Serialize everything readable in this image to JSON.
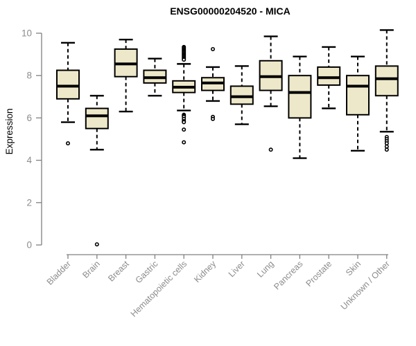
{
  "title": "ENSG00000204520 - MICA",
  "colors": {
    "box_fill": "#EDE8C9",
    "box_stroke": "#000000",
    "median": "#000000",
    "outlier_stroke": "#000000",
    "axis_line": "#808080",
    "axis_text": "#8C8C8C",
    "title_text": "#000000",
    "background": "#FFFFFF"
  },
  "chart_data": {
    "type": "boxplot",
    "title": "ENSG00000204520 - MICA",
    "xlabel": "",
    "ylabel": "Expression",
    "ylim": [
      0,
      10.2
    ],
    "yticks": [
      0,
      2,
      4,
      6,
      8,
      10
    ],
    "grid": false,
    "legend": false,
    "categories": [
      "Bladder",
      "Brain",
      "Breast",
      "Gastric",
      "Hematopoietic cells",
      "Kidney",
      "Liver",
      "Lung",
      "Pancreas",
      "Prostate",
      "Skin",
      "Unknown / Other"
    ],
    "series": [
      {
        "name": "Bladder",
        "low": 5.8,
        "q1": 6.9,
        "median": 7.5,
        "q3": 8.25,
        "high": 9.55,
        "outliers": [
          4.8
        ]
      },
      {
        "name": "Brain",
        "low": 4.5,
        "q1": 5.5,
        "median": 6.1,
        "q3": 6.45,
        "high": 7.05,
        "outliers": [
          0.03
        ]
      },
      {
        "name": "Breast",
        "low": 6.3,
        "q1": 7.95,
        "median": 8.55,
        "q3": 9.25,
        "high": 9.7,
        "outliers": []
      },
      {
        "name": "Gastric",
        "low": 7.05,
        "q1": 7.65,
        "median": 7.9,
        "q3": 8.25,
        "high": 8.8,
        "outliers": []
      },
      {
        "name": "Hematopoietic cells",
        "low": 6.35,
        "q1": 7.2,
        "median": 7.45,
        "q3": 7.75,
        "high": 8.55,
        "outliers": [
          9.35,
          9.3,
          9.25,
          9.2,
          9.15,
          9.1,
          9.05,
          9.0,
          8.95,
          8.9,
          8.85,
          8.8,
          8.75,
          6.15,
          6.1,
          6.05,
          5.95,
          5.85,
          5.8,
          5.45,
          4.85
        ]
      },
      {
        "name": "Kidney",
        "low": 6.8,
        "q1": 7.3,
        "median": 7.65,
        "q3": 7.9,
        "high": 8.4,
        "outliers": [
          9.25,
          6.05,
          5.95
        ]
      },
      {
        "name": "Liver",
        "low": 5.7,
        "q1": 6.65,
        "median": 7.0,
        "q3": 7.5,
        "high": 8.45,
        "outliers": []
      },
      {
        "name": "Lung",
        "low": 6.55,
        "q1": 7.3,
        "median": 7.95,
        "q3": 8.7,
        "high": 9.85,
        "outliers": [
          4.5
        ]
      },
      {
        "name": "Pancreas",
        "low": 4.1,
        "q1": 6.0,
        "median": 7.2,
        "q3": 8.0,
        "high": 8.9,
        "outliers": []
      },
      {
        "name": "Prostate",
        "low": 6.45,
        "q1": 7.55,
        "median": 7.9,
        "q3": 8.4,
        "high": 9.35,
        "outliers": []
      },
      {
        "name": "Skin",
        "low": 4.45,
        "q1": 6.15,
        "median": 7.5,
        "q3": 8.0,
        "high": 8.9,
        "outliers": []
      },
      {
        "name": "Unknown / Other",
        "low": 5.35,
        "q1": 7.05,
        "median": 7.85,
        "q3": 8.45,
        "high": 10.15,
        "outliers": [
          5.1,
          5.0,
          4.9,
          4.8,
          4.65,
          4.5
        ]
      }
    ]
  }
}
